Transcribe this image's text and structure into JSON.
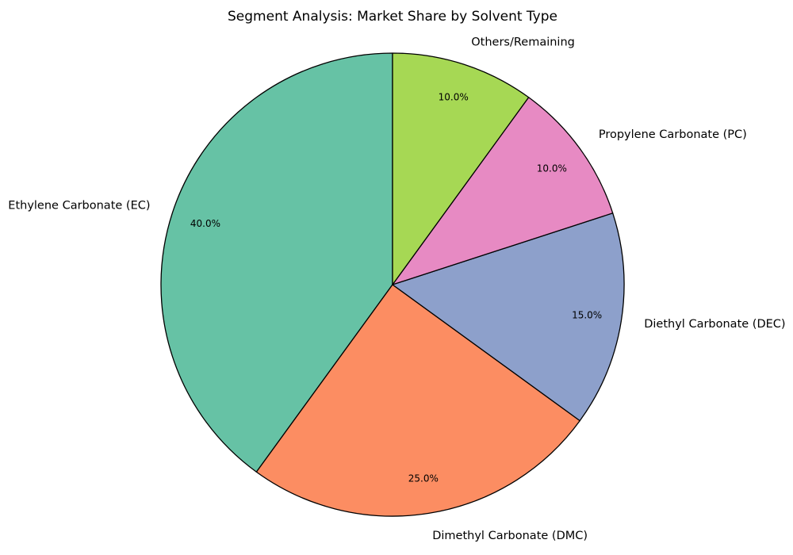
{
  "chart_data": {
    "type": "pie",
    "title": "Segment Analysis: Market Share by Solvent Type",
    "start_angle_deg": 90,
    "direction": "counterclockwise",
    "edge_color": "#000000",
    "slices": [
      {
        "label": "Ethylene Carbonate (EC)",
        "value": 40.0,
        "pct_label": "40.0%",
        "color": "#66c2a5"
      },
      {
        "label": "Dimethyl Carbonate (DMC)",
        "value": 25.0,
        "pct_label": "25.0%",
        "color": "#fc8d62"
      },
      {
        "label": "Diethyl Carbonate (DEC)",
        "value": 15.0,
        "pct_label": "15.0%",
        "color": "#8da0cb"
      },
      {
        "label": "Propylene Carbonate (PC)",
        "value": 10.0,
        "pct_label": "10.0%",
        "color": "#e78ac3"
      },
      {
        "label": "Others/Remaining",
        "value": 10.0,
        "pct_label": "10.0%",
        "color": "#a6d854"
      }
    ]
  }
}
